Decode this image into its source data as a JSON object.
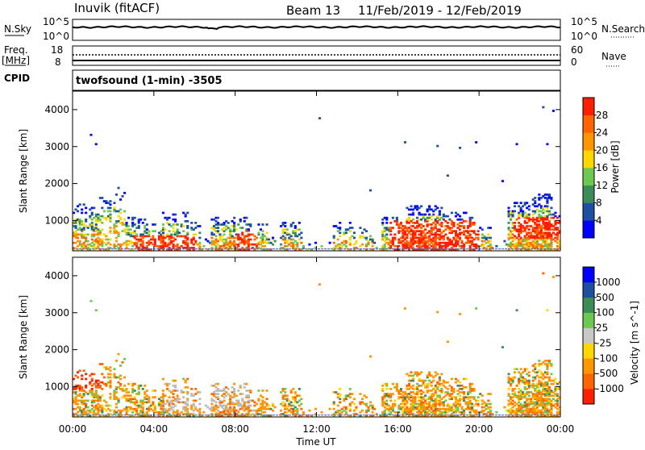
{
  "header": {
    "station": "Inuvik (fitACF)",
    "beam": "Beam 13",
    "date_range": "11/Feb/2019 - 12/Feb/2019"
  },
  "panels": {
    "nsky": {
      "left_label": "N.Sky",
      "left_ticks": [
        "10^5",
        "10^0"
      ],
      "right_ticks": [
        "10^5",
        "10^0"
      ],
      "right_label": "N.Search"
    },
    "freq": {
      "left_label_1": "Freq.",
      "left_label_2": "[MHz]",
      "left_ticks": [
        "18",
        "8"
      ],
      "right_ticks": [
        "60",
        "0"
      ],
      "right_label": "Nave"
    },
    "cpid": {
      "left_label": "CPID",
      "program": "twofsound (1-min) -3505"
    }
  },
  "colors": {
    "power": [
      "#0000ff",
      "#1e4fa0",
      "#3c8c5a",
      "#6ec850",
      "#ffd700",
      "#ff9600",
      "#ff6400",
      "#ff1e00"
    ],
    "velocity": [
      "#0000ff",
      "#1e4fa0",
      "#3c8c5a",
      "#6ec850",
      "#c8c8c8",
      "#ffd700",
      "#ff9600",
      "#ff6400",
      "#ff1e00"
    ],
    "ground_scatter": "#bbbbbb"
  },
  "chart_data": [
    {
      "type": "heatmap",
      "name": "power",
      "ylabel": "Slant Range [km]",
      "yticks": [
        1000,
        2000,
        3000,
        4000
      ],
      "ylim": [
        180,
        4500
      ],
      "colorbar_label": "Power [dB]",
      "colorbar_ticks": [
        4,
        8,
        12,
        16,
        20,
        24,
        28
      ],
      "colorbar_range": [
        0,
        32
      ]
    },
    {
      "type": "heatmap",
      "name": "velocity",
      "ylabel": "Slant Range [km]",
      "yticks": [
        1000,
        2000,
        3000,
        4000
      ],
      "ylim": [
        180,
        4500
      ],
      "colorbar_label": "Velocity [m s^-1]",
      "colorbar_ticks": [
        1000,
        500,
        100,
        25,
        -25,
        -100,
        -500,
        -1000
      ]
    }
  ],
  "x_axis": {
    "label": "Time UT",
    "ticks": [
      "00:00",
      "04:00",
      "08:00",
      "12:00",
      "16:00",
      "20:00",
      "00:00"
    ],
    "range_hours": [
      0,
      24
    ]
  }
}
